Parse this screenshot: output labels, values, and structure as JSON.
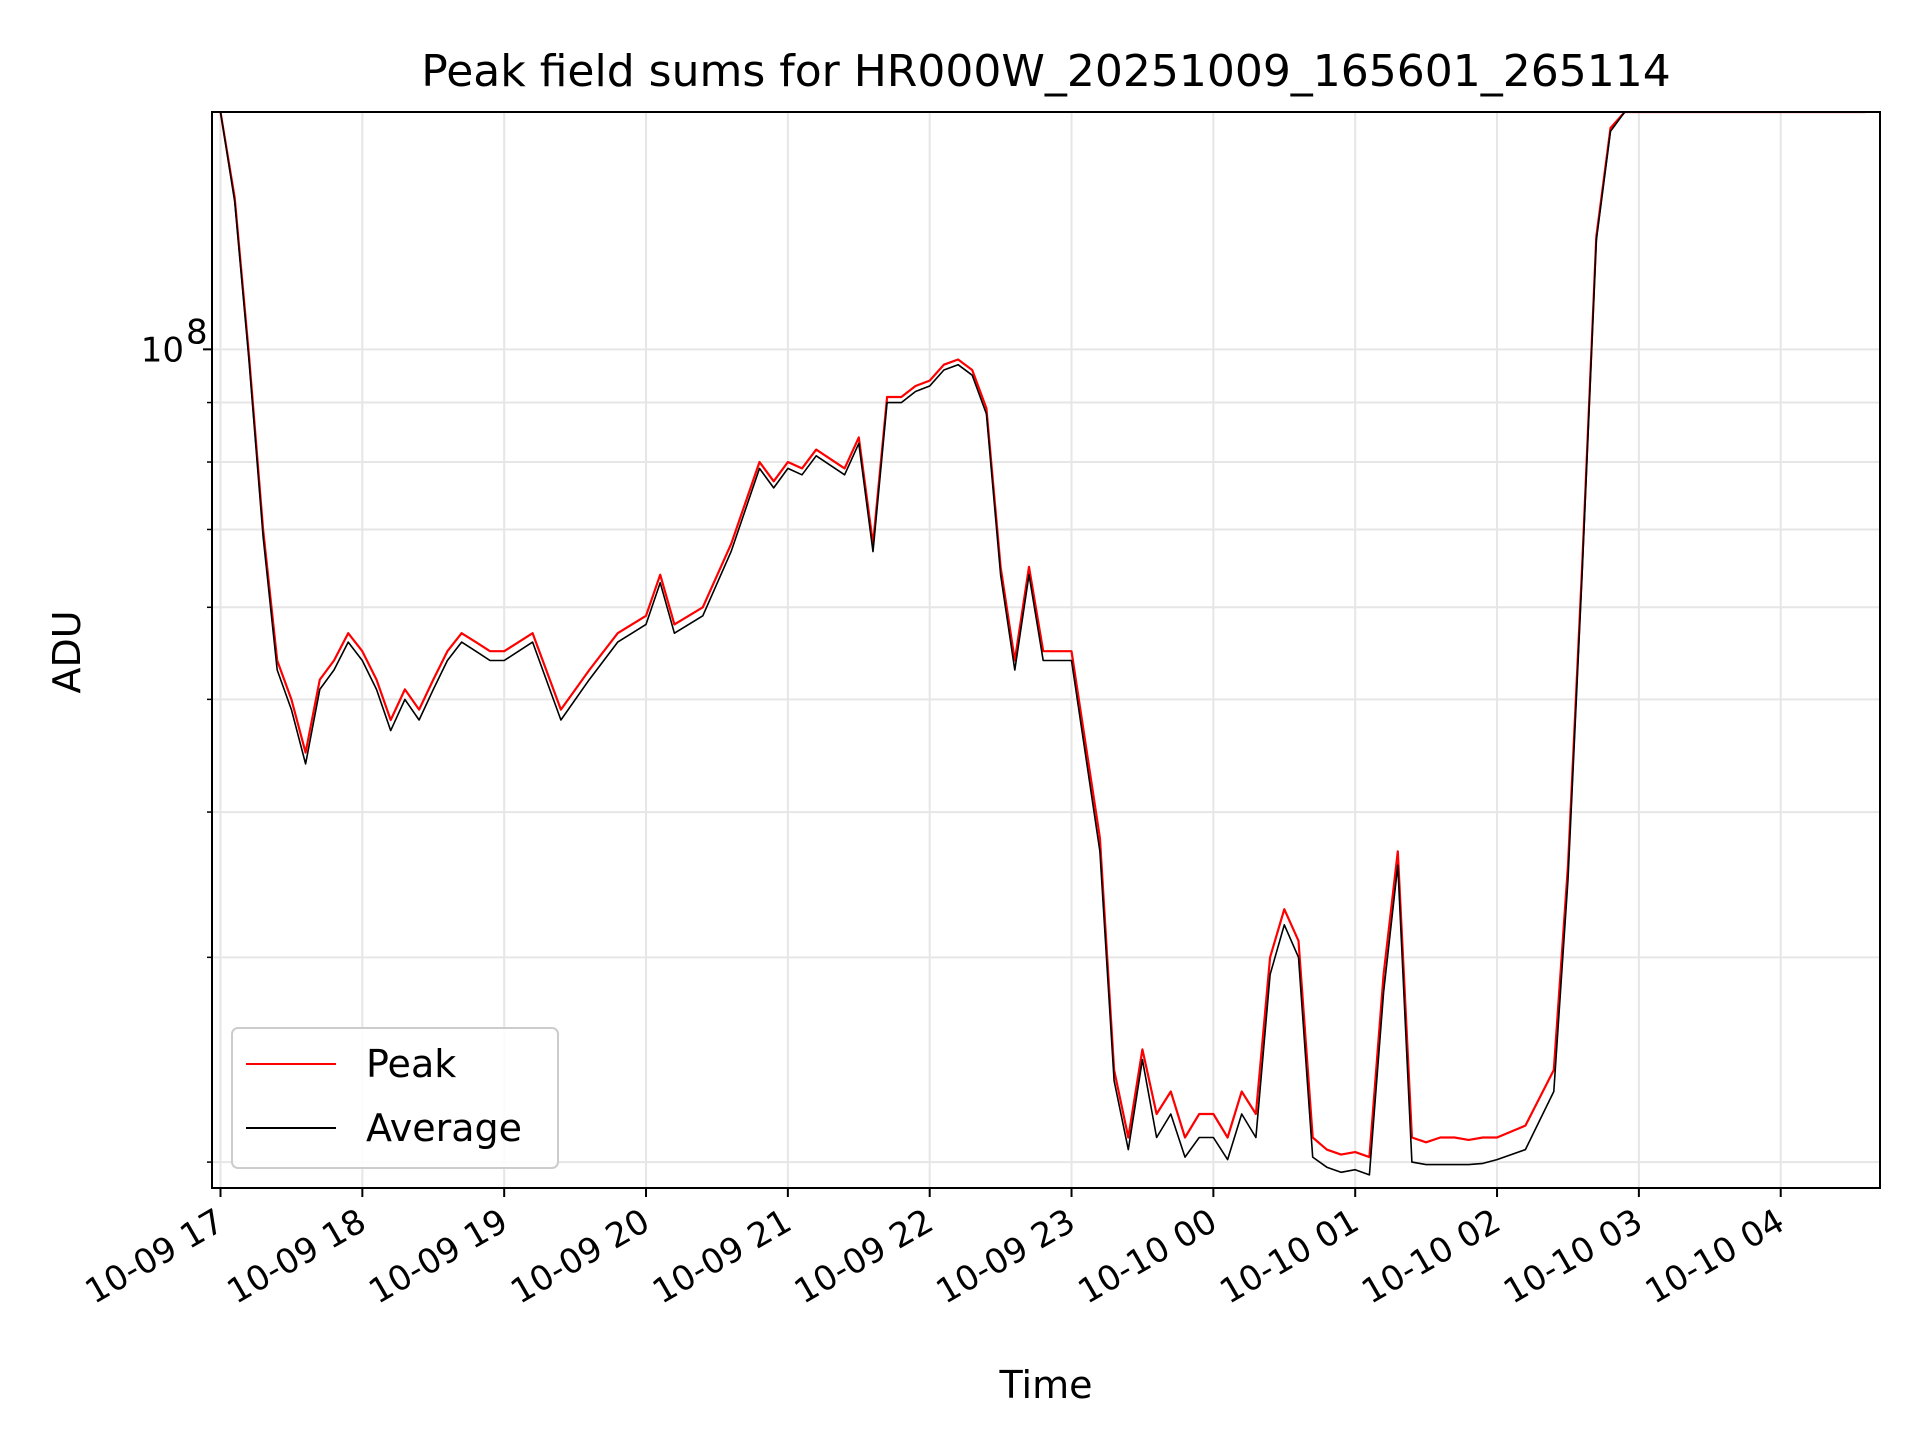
{
  "chart_data": {
    "type": "line",
    "title": "Peak field sums for HR000W_20251009_165601_265114",
    "xlabel": "Time",
    "ylabel": "ADU",
    "yscale": "log",
    "ylim": [
      19000000,
      160000000
    ],
    "y_major_tick": {
      "value": 100000000,
      "base": "10",
      "exponent": "8"
    },
    "y_minor_ticks": [
      20000000,
      30000000,
      40000000,
      50000000,
      60000000,
      70000000,
      80000000,
      90000000
    ],
    "x_unit": "hours since 10-09 17:00",
    "xlim": [
      -0.06,
      11.7
    ],
    "x_ticks": [
      {
        "x": 0,
        "label": "10-09 17"
      },
      {
        "x": 1,
        "label": "10-09 18"
      },
      {
        "x": 2,
        "label": "10-09 19"
      },
      {
        "x": 3,
        "label": "10-09 20"
      },
      {
        "x": 4,
        "label": "10-09 21"
      },
      {
        "x": 5,
        "label": "10-09 22"
      },
      {
        "x": 6,
        "label": "10-09 23"
      },
      {
        "x": 7,
        "label": "10-10 00"
      },
      {
        "x": 8,
        "label": "10-10 01"
      },
      {
        "x": 9,
        "label": "10-10 02"
      },
      {
        "x": 10,
        "label": "10-10 03"
      },
      {
        "x": 11,
        "label": "10-10 04"
      }
    ],
    "grid": true,
    "legend_position": "lower-left",
    "colors": {
      "peak": "#ff0000",
      "average": "#000000",
      "grid": "#e6e6e6"
    },
    "series": [
      {
        "name": "Peak",
        "color": "#ff0000",
        "x": [
          0.0,
          0.1,
          0.2,
          0.3,
          0.4,
          0.5,
          0.6,
          0.7,
          0.8,
          0.9,
          1.0,
          1.1,
          1.2,
          1.3,
          1.4,
          1.5,
          1.6,
          1.7,
          1.8,
          1.9,
          2.0,
          2.2,
          2.4,
          2.6,
          2.8,
          3.0,
          3.1,
          3.2,
          3.4,
          3.6,
          3.8,
          3.9,
          4.0,
          4.1,
          4.2,
          4.4,
          4.5,
          4.6,
          4.7,
          4.8,
          4.9,
          5.0,
          5.1,
          5.2,
          5.3,
          5.4,
          5.5,
          5.6,
          5.7,
          5.8,
          6.0,
          6.2,
          6.3,
          6.4,
          6.5,
          6.6,
          6.7,
          6.8,
          6.9,
          7.0,
          7.1,
          7.2,
          7.3,
          7.4,
          7.5,
          7.6,
          7.7,
          7.8,
          7.9,
          8.0,
          8.1,
          8.2,
          8.3,
          8.4,
          8.5,
          8.6,
          8.7,
          8.8,
          8.9,
          9.0,
          9.2,
          9.4,
          9.5,
          9.6,
          9.7,
          9.8,
          9.9,
          10.0,
          10.2,
          10.4,
          10.6,
          10.8,
          10.9,
          11.0,
          11.1,
          11.2,
          11.3,
          11.4,
          11.5,
          11.6
        ],
        "values": [
          160000000,
          135000000,
          99000000,
          70000000,
          54000000,
          50000000,
          45000000,
          52000000,
          54000000,
          57000000,
          55000000,
          52000000,
          48000000,
          51000000,
          49000000,
          52000000,
          55000000,
          57000000,
          56000000,
          55000000,
          55000000,
          57000000,
          49000000,
          53000000,
          57000000,
          59000000,
          64000000,
          58000000,
          60000000,
          68000000,
          80000000,
          77000000,
          80000000,
          79000000,
          82000000,
          79000000,
          84000000,
          68000000,
          91000000,
          91000000,
          93000000,
          94000000,
          97000000,
          98000000,
          96000000,
          89000000,
          65000000,
          54000000,
          65000000,
          55000000,
          55000000,
          38000000,
          24000000,
          21000000,
          25000000,
          22000000,
          23000000,
          21000000,
          22000000,
          22000000,
          21000000,
          23000000,
          22000000,
          30000000,
          33000000,
          31000000,
          21000000,
          20500000,
          20300000,
          20400000,
          20200000,
          29000000,
          37000000,
          21000000,
          20800000,
          21000000,
          21000000,
          20900000,
          21000000,
          21000000,
          21500000,
          24000000,
          36000000,
          65000000,
          125000000,
          155000000,
          160000000,
          160000000,
          160000000,
          160000000,
          160000000,
          160000000,
          160000000,
          160000000,
          160000000,
          160000000,
          160000000,
          160000000,
          160000000,
          160000000
        ]
      },
      {
        "name": "Average",
        "color": "#000000",
        "x": [
          0.0,
          0.1,
          0.2,
          0.3,
          0.4,
          0.5,
          0.6,
          0.7,
          0.8,
          0.9,
          1.0,
          1.1,
          1.2,
          1.3,
          1.4,
          1.5,
          1.6,
          1.7,
          1.8,
          1.9,
          2.0,
          2.2,
          2.4,
          2.6,
          2.8,
          3.0,
          3.1,
          3.2,
          3.4,
          3.6,
          3.8,
          3.9,
          4.0,
          4.1,
          4.2,
          4.4,
          4.5,
          4.6,
          4.7,
          4.8,
          4.9,
          5.0,
          5.1,
          5.2,
          5.3,
          5.4,
          5.5,
          5.6,
          5.7,
          5.8,
          6.0,
          6.2,
          6.3,
          6.4,
          6.5,
          6.6,
          6.7,
          6.8,
          6.9,
          7.0,
          7.1,
          7.2,
          7.3,
          7.4,
          7.5,
          7.6,
          7.7,
          7.8,
          7.9,
          8.0,
          8.1,
          8.2,
          8.3,
          8.4,
          8.5,
          8.6,
          8.7,
          8.8,
          8.9,
          9.0,
          9.2,
          9.4,
          9.5,
          9.6,
          9.7,
          9.8,
          9.9,
          10.0,
          10.2,
          10.4,
          10.6,
          10.8,
          10.9,
          11.0,
          11.1,
          11.2,
          11.3,
          11.4,
          11.5,
          11.6
        ],
        "values": [
          160000000,
          134000000,
          98000000,
          69000000,
          53000000,
          49000000,
          44000000,
          51000000,
          53000000,
          56000000,
          54000000,
          51000000,
          47000000,
          50000000,
          48000000,
          51000000,
          54000000,
          56000000,
          55000000,
          54000000,
          54000000,
          56000000,
          48000000,
          52000000,
          56000000,
          58000000,
          63000000,
          57000000,
          59000000,
          67000000,
          79000000,
          76000000,
          79000000,
          78000000,
          81000000,
          78000000,
          83000000,
          67000000,
          90000000,
          90000000,
          92000000,
          93000000,
          96000000,
          97000000,
          95000000,
          88000000,
          64000000,
          53000000,
          64000000,
          54000000,
          54000000,
          37000000,
          23500000,
          20500000,
          24500000,
          21000000,
          22000000,
          20200000,
          21000000,
          21000000,
          20100000,
          22000000,
          21000000,
          29000000,
          32000000,
          30000000,
          20200000,
          19800000,
          19600000,
          19700000,
          19500000,
          28000000,
          36000000,
          20000000,
          19900000,
          19900000,
          19900000,
          19900000,
          19950000,
          20100000,
          20500000,
          23000000,
          35000000,
          64000000,
          124000000,
          154000000,
          160000000,
          160000000,
          160000000,
          160000000,
          160000000,
          160000000,
          160000000,
          160000000,
          160000000,
          160000000,
          160000000,
          160000000,
          160000000,
          160000000
        ]
      }
    ]
  }
}
